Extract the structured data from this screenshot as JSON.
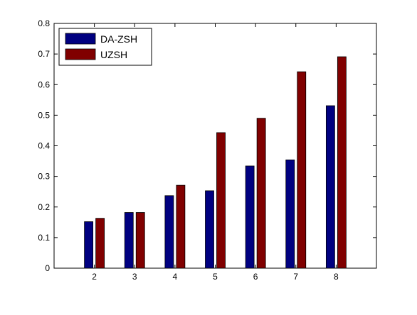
{
  "chart_data": {
    "type": "bar",
    "categories": [
      "2",
      "3",
      "4",
      "5",
      "6",
      "7",
      "8"
    ],
    "series": [
      {
        "name": "DA-ZSH",
        "color": "#000080",
        "values": [
          0.152,
          0.182,
          0.237,
          0.253,
          0.334,
          0.354,
          0.531
        ]
      },
      {
        "name": "UZSH",
        "color": "#800000",
        "values": [
          0.163,
          0.182,
          0.271,
          0.443,
          0.49,
          0.642,
          0.691
        ]
      }
    ],
    "title": "",
    "xlabel": "",
    "ylabel": "",
    "xlim": [
      1,
      9
    ],
    "ylim": [
      0,
      0.8
    ],
    "yticks": [
      0,
      0.1,
      0.2,
      0.3,
      0.4,
      0.5,
      0.6,
      0.7,
      0.8
    ],
    "ytick_labels": [
      "0",
      "0.1",
      "0.2",
      "0.3",
      "0.4",
      "0.5",
      "0.6",
      "0.7",
      "0.8"
    ],
    "grid": false,
    "legend_position": "top-left"
  }
}
